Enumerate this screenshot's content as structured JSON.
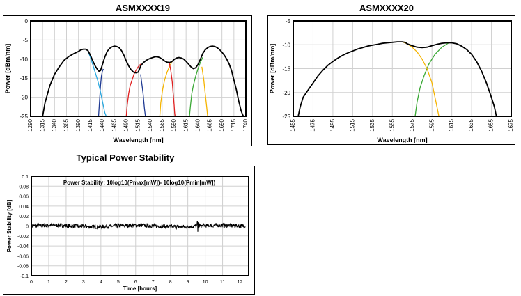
{
  "chart_data": [
    {
      "type": "line",
      "title": "ASMXXXX19",
      "xlabel": "Wavelength [nm]",
      "ylabel": "Power [dBm/nm]",
      "xlim": [
        1290,
        1740
      ],
      "ylim": [
        -25,
        0
      ],
      "x_ticks": [
        1290,
        1315,
        1340,
        1365,
        1390,
        1415,
        1440,
        1465,
        1490,
        1515,
        1540,
        1565,
        1590,
        1615,
        1640,
        1665,
        1690,
        1715,
        1740
      ],
      "y_ticks": [
        0,
        -5,
        -10,
        -15,
        -20,
        -25
      ],
      "grid": true,
      "series": [
        {
          "color": "#000000",
          "x": [
            1315,
            1320,
            1330,
            1340,
            1350,
            1360,
            1370,
            1380,
            1390,
            1395,
            1400,
            1405,
            1410,
            1415,
            1420,
            1425,
            1430,
            1433,
            1436,
            1440,
            1445,
            1450,
            1455,
            1460,
            1465,
            1470,
            1475,
            1480,
            1485,
            1490,
            1495,
            1500,
            1505,
            1510,
            1515,
            1518,
            1520,
            1525,
            1530,
            1535,
            1540,
            1545,
            1550,
            1555,
            1560,
            1565,
            1570,
            1575,
            1580,
            1585,
            1590,
            1595,
            1600,
            1605,
            1610,
            1615,
            1620,
            1625,
            1630,
            1635,
            1640,
            1645,
            1650,
            1655,
            1660,
            1665,
            1670,
            1675,
            1680,
            1685,
            1690,
            1695,
            1700,
            1705,
            1710,
            1715,
            1720,
            1725,
            1728,
            1730,
            1733,
            1735
          ],
          "y": [
            -25,
            -21.5,
            -17,
            -14,
            -12,
            -10.3,
            -9.3,
            -8.6,
            -8,
            -7.6,
            -7.4,
            -7.4,
            -7.8,
            -9,
            -10.5,
            -11.8,
            -12.8,
            -13.2,
            -13,
            -11.5,
            -9.5,
            -8,
            -7.2,
            -6.8,
            -6.6,
            -6.7,
            -7,
            -7.8,
            -9,
            -10.5,
            -11.8,
            -12.8,
            -13.4,
            -13.6,
            -13.4,
            -12.5,
            -11.8,
            -11,
            -10.5,
            -10.1,
            -9.8,
            -9.6,
            -9.4,
            -9.4,
            -9.6,
            -10,
            -10.5,
            -10.8,
            -10.9,
            -10.7,
            -10.1,
            -9.7,
            -9.6,
            -9.7,
            -10,
            -10.6,
            -11.3,
            -12,
            -12.5,
            -12.3,
            -11.4,
            -10,
            -8.5,
            -7.6,
            -7,
            -6.7,
            -6.6,
            -6.7,
            -7,
            -7.5,
            -8.2,
            -9,
            -10,
            -11.3,
            -13,
            -15.5,
            -18,
            -21,
            -22.5,
            -23.5,
            -24.5,
            -25
          ]
        },
        {
          "color": "#29a8df",
          "x": [
            1410,
            1415,
            1420,
            1425,
            1430,
            1435,
            1440,
            1445,
            1448
          ],
          "y": [
            -8,
            -9.5,
            -11.5,
            -13.5,
            -15.5,
            -18,
            -21,
            -24,
            -25
          ]
        },
        {
          "color": "#1f3a93",
          "x": [
            1432,
            1434,
            1436,
            1438,
            1440,
            1442
          ],
          "y": [
            -25,
            -21,
            -17,
            -14.5,
            -13.2,
            -12.6
          ]
        },
        {
          "color": "#1f3a93",
          "x": [
            1520,
            1522,
            1525,
            1528,
            1530
          ],
          "y": [
            -14,
            -16,
            -19,
            -23,
            -25
          ]
        },
        {
          "color": "#e02020",
          "x": [
            1490,
            1492,
            1495,
            1498,
            1502,
            1506,
            1510,
            1515,
            1520
          ],
          "y": [
            -25,
            -22,
            -19,
            -17,
            -15.5,
            -14,
            -13,
            -12,
            -11.3
          ]
        },
        {
          "color": "#e02020",
          "x": [
            1580,
            1583,
            1586,
            1588,
            1590,
            1591,
            1592
          ],
          "y": [
            -11,
            -13,
            -16,
            -19,
            -22,
            -24,
            -25
          ]
        },
        {
          "color": "#f5b400",
          "x": [
            1560,
            1562,
            1566,
            1570,
            1575,
            1580,
            1585
          ],
          "y": [
            -25,
            -21.5,
            -18,
            -15.5,
            -13.5,
            -12,
            -10.8
          ]
        },
        {
          "color": "#f5b400",
          "x": [
            1648,
            1652,
            1655,
            1658,
            1660
          ],
          "y": [
            -12,
            -15.5,
            -19,
            -22.5,
            -25
          ]
        },
        {
          "color": "#3aa835",
          "x": [
            1622,
            1624,
            1627,
            1630,
            1635,
            1640,
            1645,
            1650
          ],
          "y": [
            -25,
            -22.5,
            -19,
            -17,
            -14.5,
            -12.5,
            -10.8,
            -9.5
          ]
        }
      ]
    },
    {
      "type": "line",
      "title": "ASMXXXX20",
      "xlabel": "Wavelength [nm]",
      "ylabel": "Power [dBm/nm]",
      "xlim": [
        1455,
        1675
      ],
      "ylim": [
        -25,
        -5
      ],
      "x_ticks": [
        1455,
        1475,
        1495,
        1515,
        1535,
        1555,
        1575,
        1595,
        1615,
        1635,
        1655,
        1675
      ],
      "y_ticks": [
        -5,
        -10,
        -15,
        -20,
        -25
      ],
      "grid": true,
      "series": [
        {
          "color": "#000000",
          "x": [
            1460,
            1462,
            1465,
            1470,
            1475,
            1480,
            1485,
            1490,
            1495,
            1500,
            1505,
            1510,
            1515,
            1520,
            1525,
            1530,
            1535,
            1540,
            1545,
            1550,
            1555,
            1560,
            1565,
            1568,
            1570,
            1575,
            1580,
            1585,
            1590,
            1595,
            1600,
            1605,
            1610,
            1615,
            1620,
            1625,
            1630,
            1635,
            1640,
            1645,
            1650,
            1655,
            1658,
            1660
          ],
          "y": [
            -25,
            -23,
            -21,
            -19.5,
            -18,
            -16.5,
            -15.3,
            -14.3,
            -13.5,
            -12.8,
            -12.2,
            -11.7,
            -11.3,
            -10.9,
            -10.6,
            -10.3,
            -10.1,
            -9.9,
            -9.7,
            -9.6,
            -9.5,
            -9.4,
            -9.4,
            -9.5,
            -9.8,
            -10.2,
            -10.5,
            -10.6,
            -10.5,
            -10.2,
            -9.9,
            -9.7,
            -9.6,
            -9.6,
            -9.8,
            -10.3,
            -11,
            -12,
            -13.5,
            -15.5,
            -18,
            -21,
            -23,
            -25
          ]
        },
        {
          "color": "#f5b400",
          "x": [
            1565,
            1570,
            1575,
            1580,
            1585,
            1590,
            1595,
            1598,
            1600,
            1602
          ],
          "y": [
            -9.4,
            -9.8,
            -10.5,
            -11.5,
            -13,
            -15,
            -18,
            -21,
            -23,
            -25
          ]
        },
        {
          "color": "#3aa835",
          "x": [
            1578,
            1580,
            1583,
            1587,
            1592,
            1598,
            1605,
            1612
          ],
          "y": [
            -25,
            -22,
            -19,
            -16.5,
            -14,
            -12,
            -10.5,
            -9.6
          ]
        }
      ]
    },
    {
      "type": "line",
      "title": "Typical Power Stability",
      "annotation": "Power Stability: 10log10(Pmax[mW])- 10log10(Pmin[mW])",
      "xlabel": "Time [hours]",
      "ylabel": "Power Stability [dB]",
      "xlim": [
        0,
        12.5
      ],
      "ylim": [
        -0.1,
        0.1
      ],
      "x_ticks": [
        0,
        1,
        2,
        3,
        4,
        5,
        6,
        7,
        8,
        9,
        10,
        11,
        12
      ],
      "y_ticks": [
        0.1,
        0.08,
        0.06,
        0.04,
        0.02,
        0,
        -0.02,
        -0.04,
        -0.06,
        -0.08,
        -0.1
      ],
      "grid": true,
      "series": [
        {
          "color": "#000000",
          "x_start": 0,
          "x_end": 12.3,
          "mean": 0.0,
          "noise_amplitude": 0.004,
          "spike_at": 9.6
        }
      ]
    }
  ]
}
